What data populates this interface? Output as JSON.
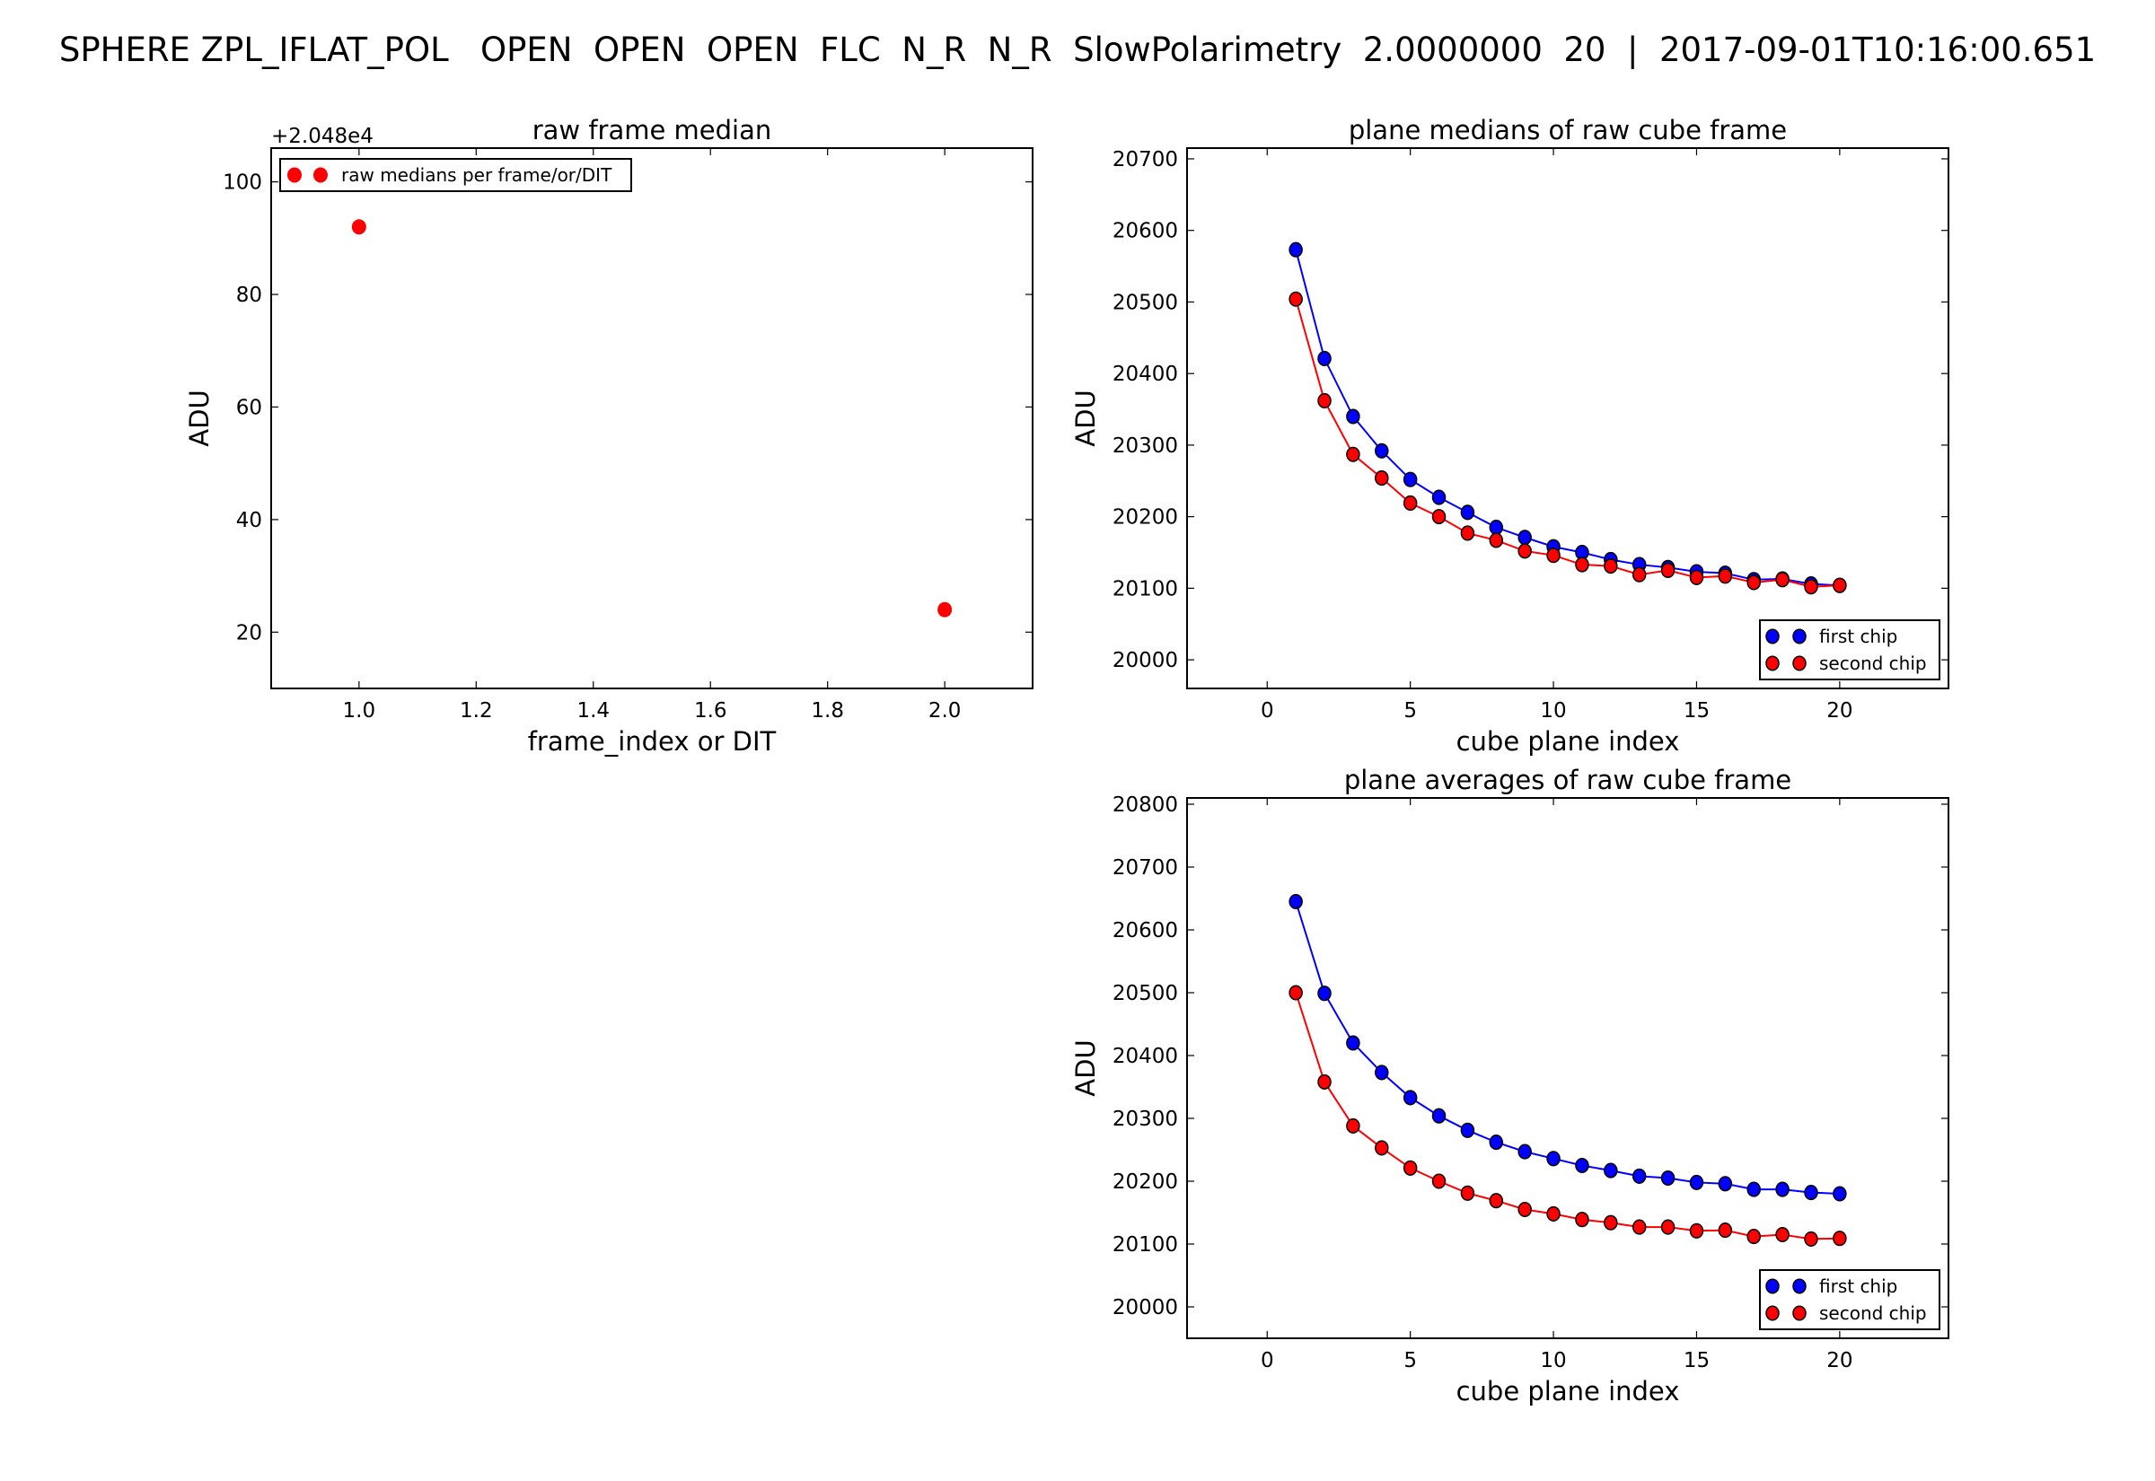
{
  "suptitle": "SPHERE ZPL_IFLAT_POL   OPEN  OPEN  OPEN  FLC  N_R  N_R  SlowPolarimetry  2.0000000  20  |  2017-09-01T10:16:00.651",
  "chart_data": [
    {
      "id": "raw-frame-median",
      "type": "scatter",
      "title": "raw frame median",
      "xlabel": "frame_index or DIT",
      "ylabel": "ADU",
      "y_offset_label": "+2.048e4",
      "y_offset": 20480,
      "xlim": [
        0.85,
        2.15
      ],
      "ylim": [
        10,
        106
      ],
      "xticks": [
        1.0,
        1.2,
        1.4,
        1.6,
        1.8,
        2.0
      ],
      "xtick_labels": [
        "1.0",
        "1.2",
        "1.4",
        "1.6",
        "1.8",
        "2.0"
      ],
      "yticks": [
        20,
        40,
        60,
        80,
        100
      ],
      "ytick_labels": [
        "20",
        "40",
        "60",
        "80",
        "100"
      ],
      "grid": false,
      "legend_position": "top-left",
      "series": [
        {
          "name": "raw medians per frame/or/DIT",
          "color": "#ff0000",
          "marker": "circle",
          "line": false,
          "x": [
            1.0,
            2.0
          ],
          "y": [
            92,
            24
          ]
        }
      ]
    },
    {
      "id": "plane-medians",
      "type": "line",
      "title": "plane medians of raw cube frame",
      "xlabel": "cube plane index",
      "ylabel": "ADU",
      "xlim": [
        -2.8,
        23.8
      ],
      "ylim": [
        19960,
        20715
      ],
      "xticks": [
        0,
        5,
        10,
        15,
        20
      ],
      "xtick_labels": [
        "0",
        "5",
        "10",
        "15",
        "20"
      ],
      "yticks": [
        20000,
        20100,
        20200,
        20300,
        20400,
        20500,
        20600,
        20700
      ],
      "ytick_labels": [
        "20000",
        "20100",
        "20200",
        "20300",
        "20400",
        "20500",
        "20600",
        "20700"
      ],
      "grid": false,
      "legend_position": "lower-right",
      "x": [
        1,
        2,
        3,
        4,
        5,
        6,
        7,
        8,
        9,
        10,
        11,
        12,
        13,
        14,
        15,
        16,
        17,
        18,
        19,
        20
      ],
      "series": [
        {
          "name": "first  chip",
          "color": "#0000ff",
          "values": [
            20573,
            20421,
            20340,
            20292,
            20252,
            20227,
            20206,
            20185,
            20171,
            20158,
            20150,
            20140,
            20133,
            20129,
            20123,
            20121,
            20112,
            20113,
            20106,
            20104
          ]
        },
        {
          "name": "second chip",
          "color": "#ff0000",
          "values": [
            20504,
            20362,
            20287,
            20254,
            20219,
            20200,
            20177,
            20167,
            20152,
            20146,
            20133,
            20131,
            20119,
            20125,
            20115,
            20117,
            20108,
            20112,
            20102,
            20104
          ]
        }
      ]
    },
    {
      "id": "plane-averages",
      "type": "line",
      "title": "plane averages of raw cube frame",
      "xlabel": "cube plane index",
      "ylabel": "ADU",
      "xlim": [
        -2.8,
        23.8
      ],
      "ylim": [
        19950,
        20810
      ],
      "xticks": [
        0,
        5,
        10,
        15,
        20
      ],
      "xtick_labels": [
        "0",
        "5",
        "10",
        "15",
        "20"
      ],
      "yticks": [
        20000,
        20100,
        20200,
        20300,
        20400,
        20500,
        20600,
        20700,
        20800
      ],
      "ytick_labels": [
        "20000",
        "20100",
        "20200",
        "20300",
        "20400",
        "20500",
        "20600",
        "20700",
        "20800"
      ],
      "grid": false,
      "legend_position": "lower-right",
      "x": [
        1,
        2,
        3,
        4,
        5,
        6,
        7,
        8,
        9,
        10,
        11,
        12,
        13,
        14,
        15,
        16,
        17,
        18,
        19,
        20
      ],
      "series": [
        {
          "name": "first  chip",
          "color": "#0000ff",
          "values": [
            20645,
            20499,
            20420,
            20373,
            20333,
            20304,
            20281,
            20262,
            20247,
            20236,
            20225,
            20217,
            20208,
            20205,
            20198,
            20196,
            20187,
            20187,
            20182,
            20180
          ]
        },
        {
          "name": "second chip",
          "color": "#ff0000",
          "values": [
            20500,
            20358,
            20288,
            20253,
            20221,
            20200,
            20181,
            20169,
            20155,
            20148,
            20139,
            20134,
            20127,
            20127,
            20121,
            20122,
            20112,
            20115,
            20108,
            20109
          ]
        }
      ]
    }
  ]
}
